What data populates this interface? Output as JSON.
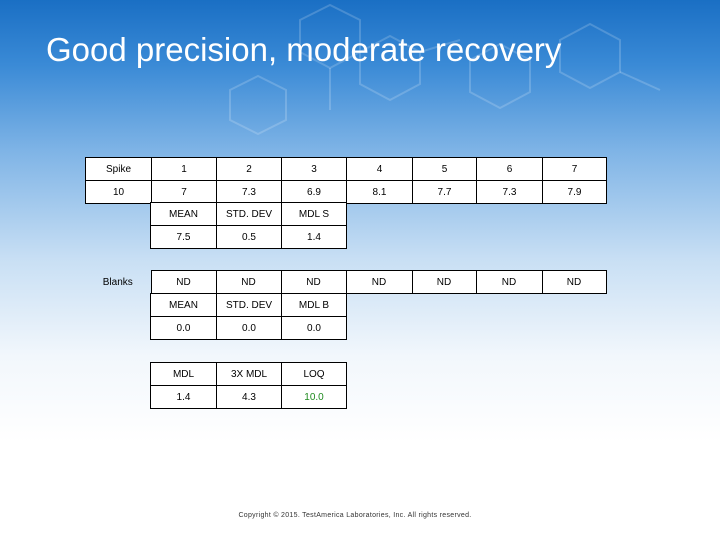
{
  "title": "Good precision, moderate recovery",
  "spike": {
    "label": "Spike",
    "replicates": [
      "1",
      "2",
      "3",
      "4",
      "5",
      "6",
      "7"
    ],
    "conc": "10",
    "results": [
      "7",
      "7.3",
      "6.9",
      "8.1",
      "7.7",
      "7.3",
      "7.9"
    ],
    "stats_headers": [
      "MEAN",
      "STD. DEV",
      "MDL S"
    ],
    "stats_values": [
      "7.5",
      "0.5",
      "1.4"
    ]
  },
  "blanks": {
    "label": "Blanks",
    "results": [
      "ND",
      "ND",
      "ND",
      "ND",
      "ND",
      "ND",
      "ND"
    ],
    "stats_headers": [
      "MEAN",
      "STD. DEV",
      "MDL B"
    ],
    "stats_values": [
      "0.0",
      "0.0",
      "0.0"
    ]
  },
  "summary": {
    "headers": [
      "MDL",
      "3X MDL",
      "LOQ"
    ],
    "values": [
      "1.4",
      "4.3",
      "10.0"
    ],
    "loq_color": "#1e8a1e"
  },
  "footer": "Copyright © 2015. TestAmerica Laboratories, Inc. All rights reserved."
}
